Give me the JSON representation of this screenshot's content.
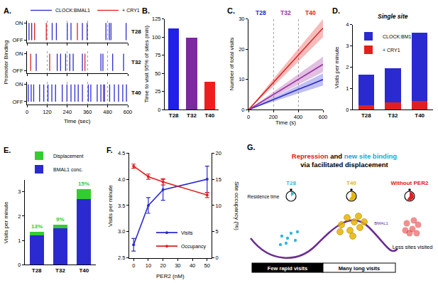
{
  "chart_data": [
    {
      "panel": "A.",
      "type": "event",
      "xlabel": "Time (sec)",
      "ylabel": "Promoter Binding",
      "xlim": [
        0,
        600
      ],
      "xticks": [
        0,
        120,
        240,
        360,
        480,
        600
      ],
      "ylim": [
        -0.15,
        1.15
      ],
      "yticks": [
        {
          "value": 0,
          "label": "OFF"
        },
        {
          "value": 1,
          "label": "ON"
        }
      ],
      "grid": true,
      "legend": "top",
      "rows": [
        {
          "name": "T28",
          "series": [
            {
              "name": "CLOCK:BMAL1",
              "color": "#2a2ad0",
              "values": [
                12,
                28,
                150,
                175,
                240,
                262,
                330,
                358,
                470,
                490,
                500,
                590
              ]
            },
            {
              "name": "+ CRY1",
              "color": "#e02020",
              "values": [
                45,
                115,
                300
              ]
            }
          ]
        },
        {
          "name": "T32",
          "series": [
            {
              "name": "CLOCK:BMAL1",
              "color": "#2a2ad0",
              "values": [
                55,
                180,
                200,
                230,
                255,
                275,
                330,
                440,
                452,
                510,
                575
              ]
            },
            {
              "name": "+ CRY1",
              "color": "#e02020",
              "values": [
                22,
                135,
                345
              ]
            }
          ]
        },
        {
          "name": "T40",
          "series": [
            {
              "name": "CLOCK:BMAL1",
              "color": "#2a2ad0",
              "values": [
                8,
                25,
                40,
                75,
                100,
                125,
                148,
                170,
                210,
                238,
                262,
                285,
                305,
                330,
                365,
                380,
                418,
                440,
                462,
                492,
                520,
                545,
                570,
                592
              ]
            },
            {
              "name": "+ CRY1",
              "color": "#e02020",
              "values": [
                455
              ]
            }
          ]
        }
      ]
    },
    {
      "panel": "B.",
      "type": "bar",
      "categories": [
        "T28",
        "T32",
        "T40"
      ],
      "values": [
        112,
        99,
        39
      ],
      "colors": [
        "#2020e6",
        "#7b2a9e",
        "#f01d1d"
      ],
      "ylabel": "Time to visit 95% of sites (min)",
      "ylim": [
        0,
        125
      ],
      "yticks": [
        0,
        25,
        50,
        75,
        100,
        125
      ]
    },
    {
      "panel": "C.",
      "type": "line",
      "x": [
        0,
        100,
        200,
        300,
        400,
        500,
        600
      ],
      "xlabel": "Time (s)",
      "ylabel": "Number of total visits",
      "xlim": [
        0,
        600
      ],
      "xticks": [
        0,
        200,
        400,
        600
      ],
      "ylim": [
        0,
        30
      ],
      "yticks": [
        0,
        10,
        20,
        30
      ],
      "grid": true,
      "series": [
        {
          "name": "T28",
          "color": "#2a2ad0",
          "values": [
            0,
            1.7,
            3.3,
            5,
            6.7,
            8.3,
            10
          ],
          "lower": [
            0,
            1.3,
            2.7,
            4,
            5.4,
            6.7,
            8
          ],
          "upper": [
            0,
            2.1,
            4,
            6,
            8,
            10,
            12
          ]
        },
        {
          "name": "T32",
          "color": "#9b30a0",
          "values": [
            0,
            2.5,
            5,
            7.5,
            10,
            12.5,
            15
          ],
          "lower": [
            0,
            2,
            4,
            6.2,
            8.3,
            10.4,
            12.5
          ],
          "upper": [
            0,
            3,
            6,
            8.8,
            11.7,
            14.6,
            17.5
          ]
        },
        {
          "name": "T40",
          "color": "#e02020",
          "values": [
            0,
            4.5,
            9,
            13.5,
            18,
            22.5,
            27
          ],
          "lower": [
            0,
            3.8,
            7.8,
            11.8,
            15.8,
            19.8,
            24
          ],
          "upper": [
            0,
            5.2,
            10.2,
            15.2,
            20.2,
            25.2,
            30
          ]
        }
      ]
    },
    {
      "panel": "D.",
      "type": "bar",
      "title": "Single site",
      "stacked": true,
      "legend": "top left",
      "categories": [
        "T28",
        "T32",
        "T40"
      ],
      "ylabel": "Visits per minute",
      "ylim": [
        0,
        4
      ],
      "yticks": [
        0,
        1,
        2,
        3,
        4
      ],
      "series": [
        {
          "name": "+ CRY1",
          "color": "#e02020",
          "values": [
            0.2,
            0.35,
            0.4
          ]
        },
        {
          "name": "CLOCK:BM1",
          "color": "#2a2ad0",
          "values": [
            1.45,
            1.6,
            3.2
          ]
        }
      ]
    },
    {
      "panel": "E.",
      "type": "bar",
      "stacked": true,
      "legend": "top",
      "categories": [
        "T28",
        "T32",
        "T40"
      ],
      "ylabel": "Visits per minute",
      "ylim": [
        0,
        3.5
      ],
      "yticks": [
        0,
        1,
        2,
        3
      ],
      "series": [
        {
          "name": "BMAL1 conc.",
          "color": "#2a2ad0",
          "values": [
            1.2,
            1.5,
            2.7
          ]
        },
        {
          "name": "Displacement",
          "color": "#33cc33",
          "values": [
            0.17,
            0.14,
            0.4
          ]
        }
      ],
      "annotations": [
        {
          "x": "T28",
          "text": "13%"
        },
        {
          "x": "T32",
          "text": "9%"
        },
        {
          "x": "T40",
          "text": "15%"
        }
      ]
    },
    {
      "panel": "F.",
      "type": "line",
      "x": [
        0,
        10,
        20,
        50
      ],
      "xlabel": "PER2 (nM)",
      "ylabel": "Visits per minute",
      "y2label": "Site occupancy (%)",
      "legend": "bottom right",
      "xlim": [
        -3,
        53
      ],
      "xticks": [
        0,
        10,
        20,
        30,
        40,
        50
      ],
      "ylim": [
        2.5,
        4.5
      ],
      "yticks": [
        2.5,
        {
          "value": 3,
          "label": "3.0"
        },
        3.5,
        {
          "value": 4,
          "label": "4.0"
        },
        4.5
      ],
      "y2lim": [
        0,
        20
      ],
      "y2ticks": [
        0,
        5,
        10,
        15,
        20
      ],
      "series": [
        {
          "name": "Visits",
          "color": "#2a2ad0",
          "values": [
            2.75,
            3.5,
            3.8,
            4.0
          ],
          "errors": [
            0.12,
            0.15,
            0.2,
            0.25
          ]
        },
        {
          "name": "Occupancy",
          "color": "#e02020",
          "axis": "y2",
          "values": [
            17.5,
            15.5,
            14.5,
            12
          ],
          "errors": [
            0.4,
            0.5,
            0.6,
            0.5
          ]
        }
      ]
    }
  ],
  "diagram": {
    "panel": "G.",
    "title_lines": [
      [
        {
          "text": "Repression",
          "color": "#e02020"
        },
        {
          "text": " and "
        },
        {
          "text": "new site binding",
          "color": "#1aa7d6"
        }
      ],
      [
        {
          "text": "via facilitated displacement"
        }
      ]
    ],
    "residence_label": "Residence time",
    "conditions": [
      {
        "label": "T28",
        "color": "#35b8e0"
      },
      {
        "label": "T40",
        "color": "#e8b400"
      },
      {
        "label": "Without PER2",
        "color": "#e02020"
      }
    ],
    "wave_label": "BMAL1",
    "bar": [
      {
        "text": "Few rapid visits",
        "style": "dark"
      },
      {
        "text": "Many long visits",
        "style": "light"
      }
    ],
    "note": "Less sites visited"
  }
}
